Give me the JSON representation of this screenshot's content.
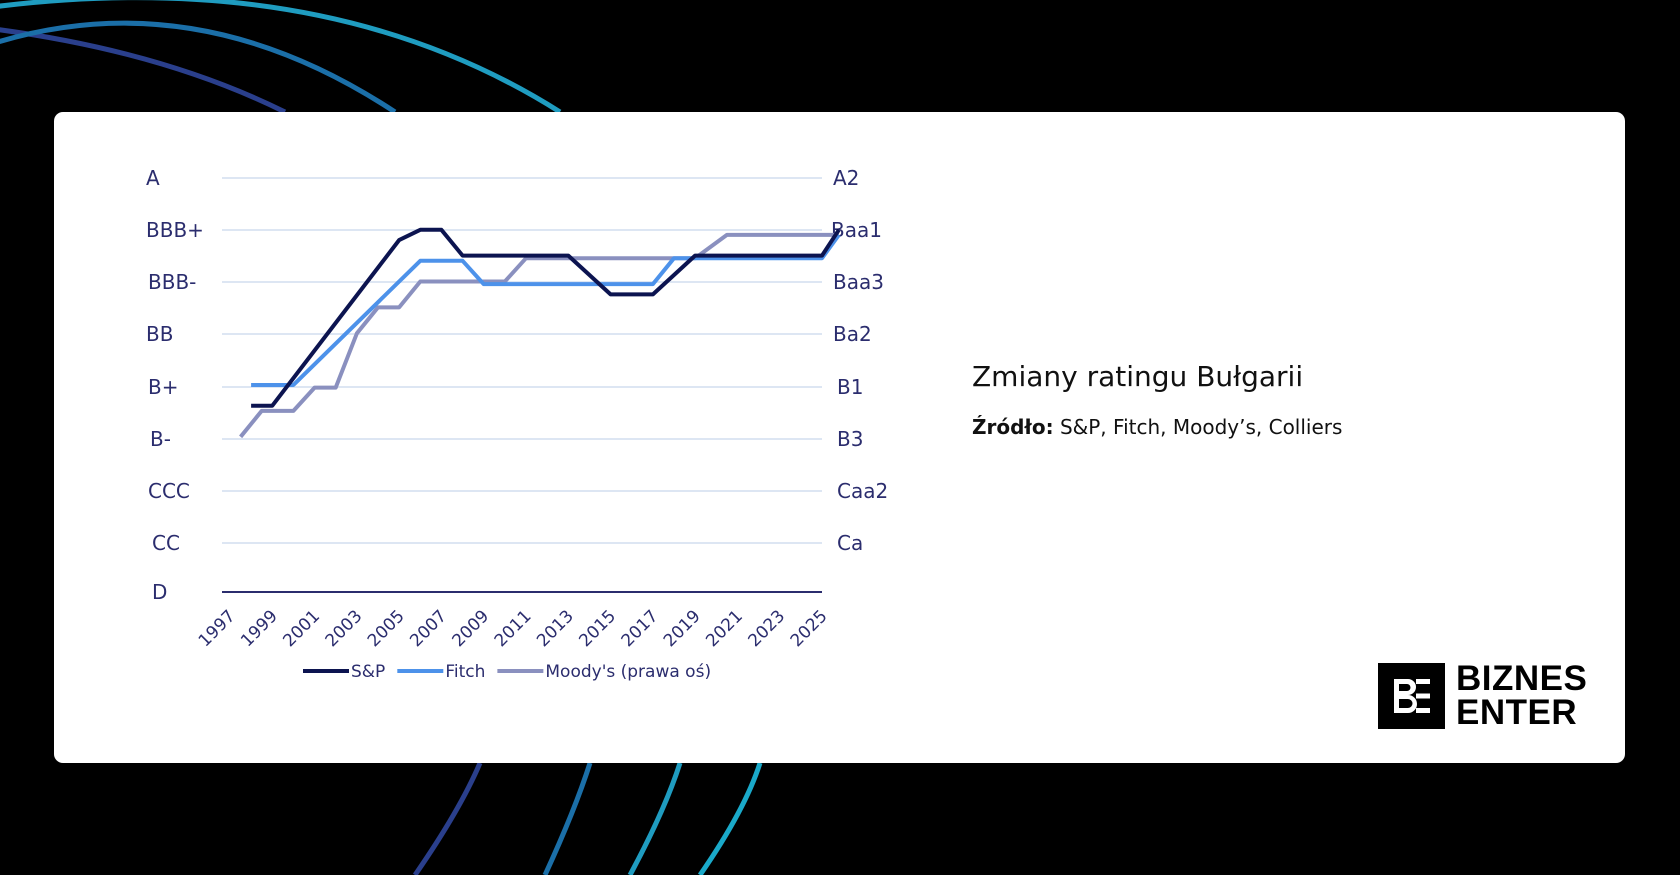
{
  "colors": {
    "background": "#000000",
    "card": "#ffffff",
    "axis_text": "#2b2d6e",
    "grid": "#dde6f3",
    "baseline": "#2b2d6e",
    "sp": "#0c1450",
    "fitch": "#4d92ea",
    "moodys": "#8a90bf"
  },
  "caption": {
    "title": "Zmiany ratingu Bułgarii",
    "source_label": "Źródło:",
    "source_text": "S&P, Fitch, Moody’s, Colliers"
  },
  "logo": {
    "line1": "BIZNES",
    "line2": "ENTER",
    "icon": "be-monogram-icon"
  },
  "chart_data": {
    "type": "line",
    "left_axis_ticks": [
      "A",
      "BBB+",
      "BBB-",
      "BB",
      "B+",
      "B-",
      "CCC",
      "CC",
      "D"
    ],
    "right_axis_ticks": [
      "A2",
      "Baa1",
      "Baa3",
      "Ba2",
      "B1",
      "B3",
      "Caa2",
      "Ca"
    ],
    "x_ticks": [
      "1997",
      "1999",
      "2001",
      "2003",
      "2005",
      "2007",
      "2009",
      "2011",
      "2013",
      "2015",
      "2017",
      "2019",
      "2021",
      "2023",
      "2025"
    ],
    "x_range": [
      1997,
      2025
    ],
    "y_range": [
      0,
      16
    ],
    "grid": true,
    "legend_position": "bottom",
    "series": [
      {
        "name": "S&P",
        "points": [
          [
            1998,
            7.2
          ],
          [
            1999,
            7.2
          ],
          [
            2005,
            13.6
          ],
          [
            2006,
            14
          ],
          [
            2007,
            14
          ],
          [
            2008,
            13
          ],
          [
            2013,
            13
          ],
          [
            2015,
            11.5
          ],
          [
            2017,
            11.5
          ],
          [
            2019,
            13
          ],
          [
            2025,
            13
          ],
          [
            2025.8,
            14
          ]
        ]
      },
      {
        "name": "Fitch",
        "points": [
          [
            1998,
            8
          ],
          [
            2000,
            8
          ],
          [
            2006,
            12.8
          ],
          [
            2008,
            12.8
          ],
          [
            2009,
            11.9
          ],
          [
            2017,
            11.9
          ],
          [
            2018,
            12.9
          ],
          [
            2025,
            12.9
          ],
          [
            2025.8,
            13.8
          ]
        ]
      },
      {
        "name": "Moody's (prawa oś)",
        "points": [
          [
            1997.5,
            6
          ],
          [
            1998.5,
            7
          ],
          [
            2000,
            7
          ],
          [
            2001,
            7.9
          ],
          [
            2002,
            7.9
          ],
          [
            2003,
            10
          ],
          [
            2004,
            11
          ],
          [
            2005,
            11
          ],
          [
            2006,
            12
          ],
          [
            2010,
            12
          ],
          [
            2011,
            12.9
          ],
          [
            2019,
            12.9
          ],
          [
            2020.5,
            13.8
          ],
          [
            2025.8,
            13.8
          ]
        ]
      }
    ]
  }
}
